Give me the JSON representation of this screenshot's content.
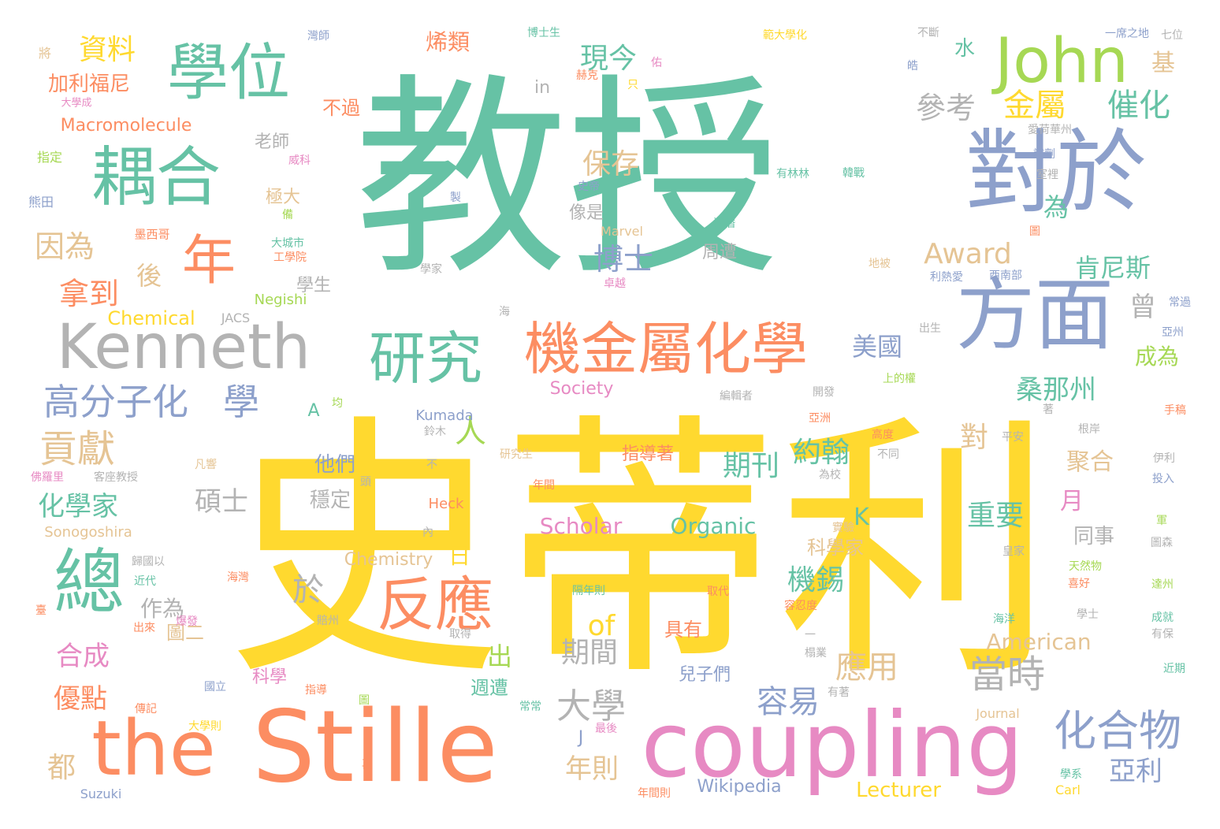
{
  "palette": {
    "teal": "#66c2a5",
    "orange": "#fc8d62",
    "blue": "#8da0cb",
    "pink": "#e78ac3",
    "green": "#a6d854",
    "yellow": "#ffd92f",
    "tan": "#e5c494",
    "gray": "#b3b3b3"
  },
  "words": [
    {
      "text": "教授",
      "color": "teal"
    },
    {
      "text": "史蒂利",
      "color": "yellow"
    },
    {
      "text": "Stille",
      "color": "orange"
    },
    {
      "text": "coupling",
      "color": "pink"
    },
    {
      "text": "the",
      "color": "orange"
    },
    {
      "text": "對於",
      "color": "blue"
    },
    {
      "text": "方面",
      "color": "blue"
    },
    {
      "text": "耦合",
      "color": "teal"
    },
    {
      "text": "學位",
      "color": "teal"
    },
    {
      "text": "John",
      "color": "green"
    },
    {
      "text": "Kenneth",
      "color": "gray"
    },
    {
      "text": "研究",
      "color": "teal"
    },
    {
      "text": "機金屬化學",
      "color": "orange"
    },
    {
      "text": "年",
      "color": "orange"
    },
    {
      "text": "反應",
      "color": "orange"
    },
    {
      "text": "總",
      "color": "teal"
    },
    {
      "text": "化合物",
      "color": "blue"
    },
    {
      "text": "高分子化",
      "color": "blue"
    },
    {
      "text": "學",
      "color": "blue"
    },
    {
      "text": "貢獻",
      "color": "tan"
    },
    {
      "text": "當時",
      "color": "gray"
    },
    {
      "text": "大學",
      "color": "gray"
    },
    {
      "text": "容易",
      "color": "blue"
    },
    {
      "text": "應用",
      "color": "tan"
    },
    {
      "text": "金屬",
      "color": "yellow"
    },
    {
      "text": "催化",
      "color": "teal"
    },
    {
      "text": "參考",
      "color": "gray"
    },
    {
      "text": "資料",
      "color": "yellow"
    },
    {
      "text": "現今",
      "color": "teal"
    },
    {
      "text": "保存",
      "color": "tan"
    },
    {
      "text": "博士",
      "color": "blue"
    },
    {
      "text": "Award",
      "color": "tan"
    },
    {
      "text": "肯尼斯",
      "color": "teal"
    },
    {
      "text": "因為",
      "color": "tan"
    },
    {
      "text": "拿到",
      "color": "orange"
    },
    {
      "text": "後",
      "color": "tan"
    },
    {
      "text": "人",
      "color": "green"
    },
    {
      "text": "為",
      "color": "teal"
    },
    {
      "text": "曾",
      "color": "gray"
    },
    {
      "text": "美國",
      "color": "blue"
    },
    {
      "text": "桑那州",
      "color": "teal"
    },
    {
      "text": "成為",
      "color": "green"
    },
    {
      "text": "約翰",
      "color": "teal"
    },
    {
      "text": "對",
      "color": "tan"
    },
    {
      "text": "期刊",
      "color": "teal"
    },
    {
      "text": "重要",
      "color": "teal"
    },
    {
      "text": "聚合",
      "color": "tan"
    },
    {
      "text": "月",
      "color": "pink"
    },
    {
      "text": "同事",
      "color": "gray"
    },
    {
      "text": "化學家",
      "color": "teal"
    },
    {
      "text": "碩士",
      "color": "gray"
    },
    {
      "text": "他們",
      "color": "blue"
    },
    {
      "text": "穩定",
      "color": "gray"
    },
    {
      "text": "於",
      "color": "gray"
    },
    {
      "text": "日",
      "color": "yellow"
    },
    {
      "text": "of",
      "color": "yellow"
    },
    {
      "text": "出",
      "color": "green"
    },
    {
      "text": "期間",
      "color": "gray"
    },
    {
      "text": "年則",
      "color": "tan"
    },
    {
      "text": "亞利",
      "color": "blue"
    },
    {
      "text": "機錫",
      "color": "teal"
    },
    {
      "text": "科學家",
      "color": "tan"
    },
    {
      "text": "合成",
      "color": "pink"
    },
    {
      "text": "優點",
      "color": "orange"
    },
    {
      "text": "作為",
      "color": "gray"
    },
    {
      "text": "圖二",
      "color": "tan"
    },
    {
      "text": "都",
      "color": "tan"
    },
    {
      "text": "K",
      "color": "teal"
    },
    {
      "text": "A",
      "color": "teal"
    },
    {
      "text": "水",
      "color": "teal"
    },
    {
      "text": "基",
      "color": "tan"
    },
    {
      "text": "Scholar",
      "color": "pink"
    },
    {
      "text": "Organic",
      "color": "teal"
    },
    {
      "text": "Chemistry",
      "color": "tan"
    },
    {
      "text": "American",
      "color": "tan"
    },
    {
      "text": "Chemical",
      "color": "yellow"
    },
    {
      "text": "Society",
      "color": "pink"
    },
    {
      "text": "Macromolecule",
      "color": "orange"
    },
    {
      "text": "Wikipedia",
      "color": "blue"
    },
    {
      "text": "Lecturer",
      "color": "yellow"
    },
    {
      "text": "指導著",
      "color": "orange"
    },
    {
      "text": "具有",
      "color": "orange"
    },
    {
      "text": "兒子們",
      "color": "blue"
    },
    {
      "text": "週遭",
      "color": "teal"
    },
    {
      "text": "周遭",
      "color": "gray"
    },
    {
      "text": "科學",
      "color": "pink"
    },
    {
      "text": "老師",
      "color": "gray"
    },
    {
      "text": "極大",
      "color": "tan"
    },
    {
      "text": "像是",
      "color": "gray"
    },
    {
      "text": "學生",
      "color": "gray"
    },
    {
      "text": "加利福尼",
      "color": "orange"
    },
    {
      "text": "烯類",
      "color": "orange"
    },
    {
      "text": "不過",
      "color": "orange"
    },
    {
      "text": "Negishi",
      "color": "green"
    },
    {
      "text": "Kumada",
      "color": "blue"
    },
    {
      "text": "Heck",
      "color": "orange"
    },
    {
      "text": "Sonogoshira",
      "color": "tan"
    },
    {
      "text": "Suzuki",
      "color": "blue"
    },
    {
      "text": "Journal",
      "color": "tan"
    },
    {
      "text": "Carl",
      "color": "yellow"
    },
    {
      "text": "Marvel",
      "color": "tan"
    },
    {
      "text": "JACS",
      "color": "gray"
    },
    {
      "text": "in",
      "color": "gray"
    },
    {
      "text": "J",
      "color": "blue"
    },
    {
      "text": "將",
      "color": "tan"
    },
    {
      "text": "熊田",
      "color": "blue"
    },
    {
      "text": "指定",
      "color": "green"
    },
    {
      "text": "大學成",
      "color": "pink"
    },
    {
      "text": "墨西哥",
      "color": "orange"
    },
    {
      "text": "大城市",
      "color": "teal"
    },
    {
      "text": "工學院",
      "color": "orange"
    },
    {
      "text": "威科",
      "color": "pink"
    },
    {
      "text": "備",
      "color": "green"
    },
    {
      "text": "灣師",
      "color": "blue"
    },
    {
      "text": "博士生",
      "color": "teal"
    },
    {
      "text": "赫克",
      "color": "orange"
    },
    {
      "text": "只",
      "color": "yellow"
    },
    {
      "text": "佑",
      "color": "pink"
    },
    {
      "text": "範大學化",
      "color": "yellow"
    },
    {
      "text": "不斷",
      "color": "gray"
    },
    {
      "text": "皓",
      "color": "blue"
    },
    {
      "text": "一席之地",
      "color": "blue"
    },
    {
      "text": "七位",
      "color": "gray"
    },
    {
      "text": "愛荷華州",
      "color": "gray"
    },
    {
      "text": "試劑",
      "color": "blue"
    },
    {
      "text": "室裡",
      "color": "gray"
    },
    {
      "text": "有林林",
      "color": "teal"
    },
    {
      "text": "韓戰",
      "color": "teal"
    },
    {
      "text": "史帝",
      "color": "blue"
    },
    {
      "text": "製",
      "color": "blue"
    },
    {
      "text": "浮潛",
      "color": "teal"
    },
    {
      "text": "圖",
      "color": "orange"
    },
    {
      "text": "學家",
      "color": "gray"
    },
    {
      "text": "地被",
      "color": "tan"
    },
    {
      "text": "利熱愛",
      "color": "blue"
    },
    {
      "text": "西南部",
      "color": "blue"
    },
    {
      "text": "卓越",
      "color": "pink"
    },
    {
      "text": "常過",
      "color": "blue"
    },
    {
      "text": "亞州",
      "color": "blue"
    },
    {
      "text": "海",
      "color": "gray"
    },
    {
      "text": "出生",
      "color": "gray"
    },
    {
      "text": "上的權",
      "color": "green"
    },
    {
      "text": "編輯者",
      "color": "gray"
    },
    {
      "text": "開發",
      "color": "gray"
    },
    {
      "text": "亞洲",
      "color": "orange"
    },
    {
      "text": "著",
      "color": "gray"
    },
    {
      "text": "均",
      "color": "green"
    },
    {
      "text": "鈴木",
      "color": "gray"
    },
    {
      "text": "根岸",
      "color": "gray"
    },
    {
      "text": "手稿",
      "color": "orange"
    },
    {
      "text": "高度",
      "color": "orange"
    },
    {
      "text": "平安",
      "color": "gray"
    },
    {
      "text": "不同",
      "color": "gray"
    },
    {
      "text": "為校",
      "color": "gray"
    },
    {
      "text": "研究生",
      "color": "tan"
    },
    {
      "text": "不",
      "color": "gray"
    },
    {
      "text": "頭",
      "color": "gray"
    },
    {
      "text": "年間",
      "color": "orange"
    },
    {
      "text": "伊利",
      "color": "gray"
    },
    {
      "text": "投入",
      "color": "blue"
    },
    {
      "text": "佛羅里",
      "color": "pink"
    },
    {
      "text": "客座教授",
      "color": "gray"
    },
    {
      "text": "凡響",
      "color": "tan"
    },
    {
      "text": "實驗",
      "color": "tan"
    },
    {
      "text": "皇家",
      "color": "gray"
    },
    {
      "text": "軍",
      "color": "green"
    },
    {
      "text": "圖森",
      "color": "gray"
    },
    {
      "text": "內",
      "color": "gray"
    },
    {
      "text": "歸國以",
      "color": "gray"
    },
    {
      "text": "海灣",
      "color": "orange"
    },
    {
      "text": "近代",
      "color": "teal"
    },
    {
      "text": "臺",
      "color": "orange"
    },
    {
      "text": "天然物",
      "color": "green"
    },
    {
      "text": "喜好",
      "color": "orange"
    },
    {
      "text": "隔年則",
      "color": "teal"
    },
    {
      "text": "取代",
      "color": "orange"
    },
    {
      "text": "容忍度",
      "color": "orange"
    },
    {
      "text": "達州",
      "color": "green"
    },
    {
      "text": "學士",
      "color": "gray"
    },
    {
      "text": "成就",
      "color": "teal"
    },
    {
      "text": "有保",
      "color": "gray"
    },
    {
      "text": "海洋",
      "color": "teal"
    },
    {
      "text": "出來",
      "color": "orange"
    },
    {
      "text": "爆發",
      "color": "pink"
    },
    {
      "text": "賠州",
      "color": "gray"
    },
    {
      "text": "取得",
      "color": "gray"
    },
    {
      "text": "榻業",
      "color": "gray"
    },
    {
      "text": "近期",
      "color": "teal"
    },
    {
      "text": "國立",
      "color": "blue"
    },
    {
      "text": "指導",
      "color": "orange"
    },
    {
      "text": "圖",
      "color": "green"
    },
    {
      "text": "有著",
      "color": "gray"
    },
    {
      "text": "常常",
      "color": "teal"
    },
    {
      "text": "傳記",
      "color": "orange"
    },
    {
      "text": "大學則",
      "color": "yellow"
    },
    {
      "text": "再",
      "color": "orange"
    },
    {
      "text": "最後",
      "color": "pink"
    },
    {
      "text": "學系",
      "color": "teal"
    },
    {
      "text": "年間則",
      "color": "orange"
    },
    {
      "text": "一",
      "color": "gray"
    }
  ]
}
